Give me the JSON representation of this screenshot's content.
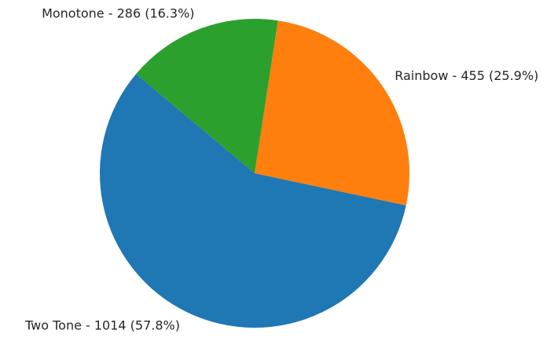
{
  "chart_data": {
    "type": "pie",
    "categories": [
      "Two Tone",
      "Rainbow",
      "Monotone"
    ],
    "values": [
      1014,
      455,
      286
    ],
    "value_labels": [
      "Two Tone - 1014 (57.8%)",
      "Rainbow - 455 (25.9%)",
      "Monotone - 286 (16.3%)"
    ],
    "colors": [
      "#1f77b4",
      "#ff7f0e",
      "#2ca02c"
    ]
  }
}
